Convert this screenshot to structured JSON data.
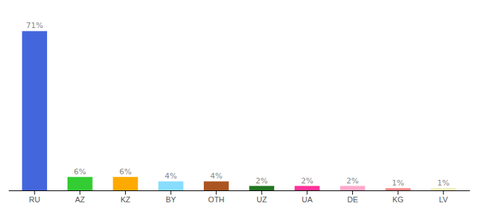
{
  "chart_data": {
    "type": "bar",
    "categories": [
      "RU",
      "AZ",
      "KZ",
      "BY",
      "OTH",
      "UZ",
      "UA",
      "DE",
      "KG",
      "LV"
    ],
    "values": [
      71,
      6,
      6,
      4,
      4,
      2,
      2,
      2,
      1,
      1
    ],
    "value_labels": [
      "71%",
      "6%",
      "6%",
      "4%",
      "4%",
      "2%",
      "2%",
      "2%",
      "1%",
      "1%"
    ],
    "colors": [
      "#4466DD",
      "#33CC33",
      "#FFAA00",
      "#88DDFF",
      "#AA5522",
      "#227722",
      "#FF3399",
      "#FFAACC",
      "#FF8888",
      "#EEEEBB"
    ],
    "ylim": [
      0,
      78
    ],
    "data_labels": true,
    "tick_labels": "x"
  }
}
